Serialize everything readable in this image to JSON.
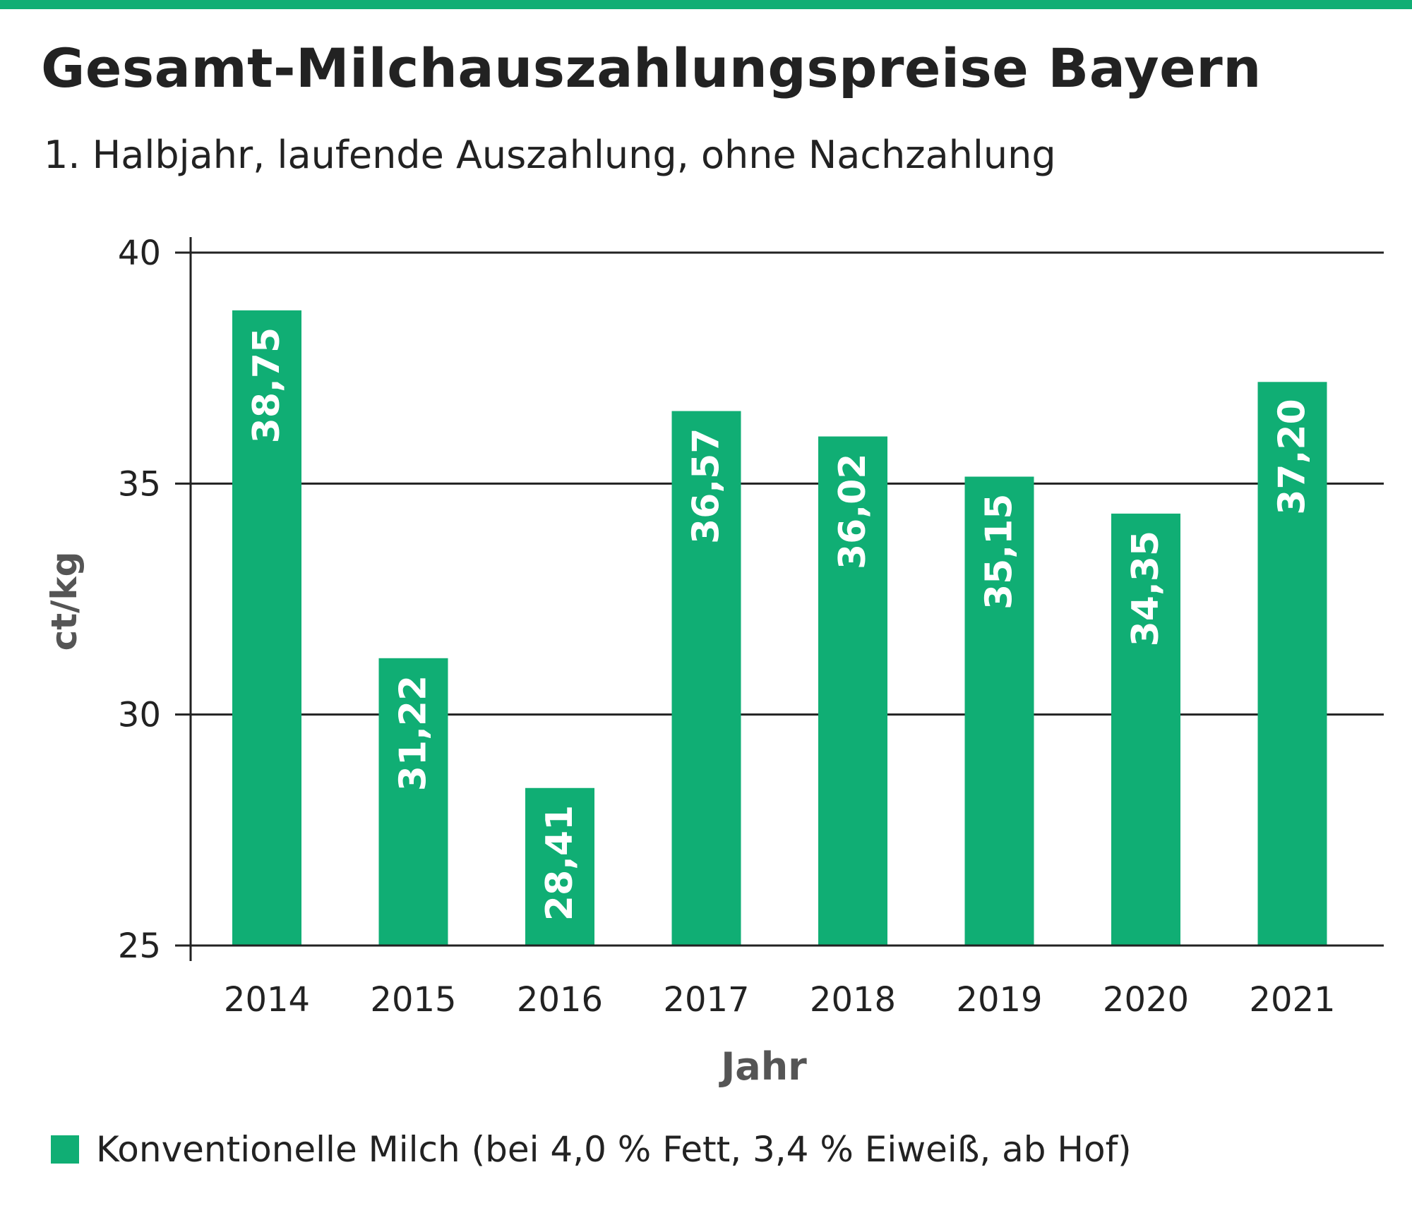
{
  "chart_data": {
    "type": "bar",
    "title": "Gesamt-Milchauszahlungspreise Bayern",
    "subtitle": "1. Halbjahr, laufende Auszahlung, ohne Nachzahlung",
    "xlabel": "Jahr",
    "ylabel": "ct/kg",
    "categories": [
      "2014",
      "2015",
      "2016",
      "2017",
      "2018",
      "2019",
      "2020",
      "2021"
    ],
    "series": [
      {
        "name": "Konventionelle Milch (bei 4,0 % Fett, 3,4 % Eiweiß, ab Hof)",
        "values": [
          38.75,
          31.22,
          28.41,
          36.57,
          36.02,
          35.15,
          34.35,
          37.2
        ],
        "labels": [
          "38,75",
          "31,22",
          "28,41",
          "36,57",
          "36,02",
          "35,15",
          "34,35",
          "37,20"
        ]
      }
    ],
    "ylim": [
      25,
      40
    ],
    "yticks": [
      "25",
      "30",
      "35",
      "40"
    ],
    "grid": true,
    "legend_position": "bottom-left",
    "colors": {
      "bar": "#10ae74",
      "accent": "#10ae74",
      "axis": "#222222",
      "text": "#222222",
      "label": "#ffffff"
    }
  }
}
